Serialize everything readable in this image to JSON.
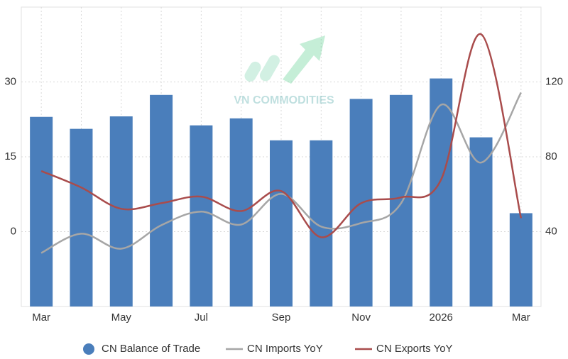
{
  "chart_data": {
    "type": "bar-line",
    "watermark": "VN COMMODITIES",
    "categories": [
      "Mar",
      null,
      "May",
      null,
      "Jul",
      null,
      "Sep",
      null,
      "Nov",
      null,
      "2026",
      null,
      "Mar"
    ],
    "ylim": [
      -15,
      45
    ],
    "yticks": [
      0,
      15,
      30
    ],
    "y2lim": [
      0,
      160
    ],
    "y2ticks": [
      40,
      80,
      120
    ],
    "grid": true,
    "legend": "bottom",
    "series": [
      {
        "name": "CN Balance of Trade",
        "type": "bar",
        "color": "#4a7ebb",
        "values": [
          23.0,
          20.6,
          23.1,
          27.4,
          21.3,
          22.7,
          18.3,
          18.3,
          26.6,
          27.4,
          30.7,
          18.9,
          3.7
        ]
      },
      {
        "name": "CN Imports YoY",
        "type": "line",
        "axis": "y2",
        "color": "#a6a6a6",
        "values": [
          28.6,
          38.9,
          30.9,
          43.4,
          50.7,
          43.8,
          60.2,
          42.7,
          44.6,
          55.2,
          107.8,
          76.9,
          114.3
        ]
      },
      {
        "name": "CN Exports YoY",
        "type": "line",
        "axis": "y2",
        "color": "#a94c4c",
        "values": [
          72.4,
          63.6,
          52.2,
          55.2,
          58.7,
          51.0,
          61.7,
          37.0,
          55.2,
          58.3,
          67.8,
          145.5,
          47.2
        ]
      }
    ]
  }
}
